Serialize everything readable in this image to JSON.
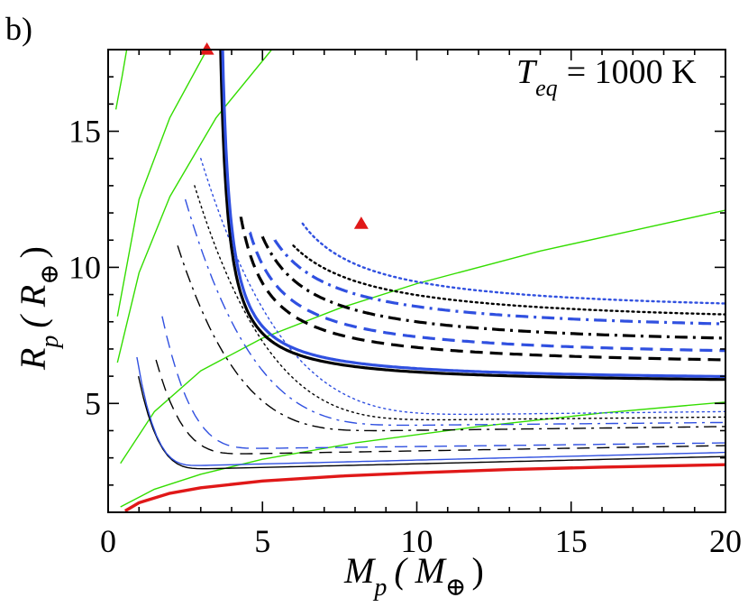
{
  "panel_label": "b)",
  "annotation": {
    "symbol": "T",
    "subscript": "eq",
    "equals": "= 1000 K"
  },
  "axis_labels": {
    "x": {
      "symbol": "M",
      "sub": "p",
      "open": "( M",
      "earth": "⊕",
      "close": ")"
    },
    "y": {
      "symbol": "R",
      "sub": "p",
      "open": "( R",
      "earth": "⊕",
      "close": ")"
    }
  },
  "chart_data": {
    "type": "line",
    "xlim": [
      0,
      20
    ],
    "ylim": [
      1,
      18
    ],
    "x_ticks": [
      0,
      5,
      10,
      15,
      20
    ],
    "x_tick_labels": [
      "0",
      "5",
      "10",
      "15",
      "20"
    ],
    "y_ticks": [
      5,
      10,
      15
    ],
    "y_tick_labels": [
      "5",
      "10",
      "15"
    ],
    "colors": {
      "black": "#000000",
      "blue": "#3050e0",
      "green": "#33dd00",
      "red": "#e01818"
    },
    "thick_families": [
      {
        "name": "black-solid-thick",
        "color": "black",
        "dash": "solid",
        "width": 3.2,
        "asym": 5.7,
        "k": 3.0,
        "x0": 3.4,
        "xstart": 3.55
      },
      {
        "name": "blue-solid-thick",
        "color": "blue",
        "dash": "solid",
        "width": 3.2,
        "asym": 5.8,
        "k": 3.15,
        "x0": 3.45,
        "xstart": 3.6
      },
      {
        "name": "black-dashed-thick",
        "color": "black",
        "dash": "dashed",
        "width": 3.2,
        "asym": 6.3,
        "k": 5.0,
        "x0": 3.4,
        "xstart": 4.3
      },
      {
        "name": "blue-dashed-thick",
        "color": "blue",
        "dash": "dashed",
        "width": 3.2,
        "asym": 6.6,
        "k": 5.6,
        "x0": 3.4,
        "xstart": 4.6
      },
      {
        "name": "black-dashdot-thick",
        "color": "black",
        "dash": "dashdot",
        "width": 3.2,
        "asym": 7.0,
        "k": 6.6,
        "x0": 3.4,
        "xstart": 5.0
      },
      {
        "name": "blue-dashdot-thick",
        "color": "blue",
        "dash": "dashdot",
        "width": 3.2,
        "asym": 7.5,
        "k": 7.0,
        "x0": 3.4,
        "xstart": 5.4
      },
      {
        "name": "black-dotted-thick",
        "color": "black",
        "dash": "dotted",
        "width": 2.4,
        "asym": 7.8,
        "k": 7.8,
        "x0": 3.4,
        "xstart": 6.0
      },
      {
        "name": "blue-dotted-thick",
        "color": "blue",
        "dash": "dotted",
        "width": 2.4,
        "asym": 8.2,
        "k": 7.5,
        "x0": 4.1,
        "xstart": 6.3
      }
    ],
    "thin_families": [
      {
        "name": "black-solid-thin",
        "color": "black",
        "dash": "solid",
        "width": 1.4,
        "xstart": 0.98,
        "ystart": 6.0,
        "ymin": 2.6,
        "xmin": 3.2,
        "yend": 3.05
      },
      {
        "name": "blue-solid-thin",
        "color": "blue",
        "dash": "solid",
        "width": 1.4,
        "xstart": 0.93,
        "ystart": 6.7,
        "ymin": 2.72,
        "xmin": 3.0,
        "yend": 3.2
      },
      {
        "name": "black-dashed-thin",
        "color": "black",
        "dash": "dashed",
        "width": 1.4,
        "xstart": 1.55,
        "ystart": 6.6,
        "ymin": 3.15,
        "xmin": 4.5,
        "yend": 3.45
      },
      {
        "name": "blue-dashed-thin",
        "color": "blue",
        "dash": "dashed",
        "width": 1.4,
        "xstart": 1.75,
        "ystart": 8.2,
        "ymin": 3.35,
        "xmin": 5.0,
        "yend": 3.55
      },
      {
        "name": "black-dashdot-thin",
        "color": "black",
        "dash": "dashdot",
        "width": 1.4,
        "xstart": 2.25,
        "ystart": 10.8,
        "ymin": 4.0,
        "xmin": 9.0,
        "yend": 4.15
      },
      {
        "name": "blue-dashdot-thin",
        "color": "blue",
        "dash": "dashdot",
        "width": 1.4,
        "xstart": 2.5,
        "ystart": 12.5,
        "ymin": 4.2,
        "xmin": 10.0,
        "yend": 4.3
      },
      {
        "name": "black-dotted-thin",
        "color": "black",
        "dash": "dotted",
        "width": 1.4,
        "xstart": 2.8,
        "ystart": 13.0,
        "ymin": 4.4,
        "xmin": 11.0,
        "yend": 4.5
      },
      {
        "name": "blue-dotted-thin",
        "color": "blue",
        "dash": "dotted",
        "width": 1.4,
        "xstart": 3.0,
        "ystart": 14.0,
        "ymin": 4.6,
        "xmin": 12.0,
        "yend": 4.7
      }
    ],
    "green_curves": [
      {
        "name": "green-1",
        "points": [
          [
            0.25,
            15.8
          ],
          [
            0.45,
            17.0
          ],
          [
            0.6,
            18.0
          ]
        ]
      },
      {
        "name": "green-2",
        "points": [
          [
            0.3,
            8.2
          ],
          [
            1.0,
            12.5
          ],
          [
            2.0,
            15.5
          ],
          [
            3.2,
            18.0
          ]
        ]
      },
      {
        "name": "green-3",
        "points": [
          [
            0.3,
            6.5
          ],
          [
            1.0,
            9.8
          ],
          [
            2.0,
            12.6
          ],
          [
            3.5,
            15.5
          ],
          [
            5.3,
            18.0
          ]
        ]
      },
      {
        "name": "green-4",
        "points": [
          [
            0.4,
            2.8
          ],
          [
            1.5,
            4.7
          ],
          [
            3.0,
            6.2
          ],
          [
            5.0,
            7.4
          ],
          [
            7.5,
            8.5
          ],
          [
            10.0,
            9.4
          ],
          [
            14.0,
            10.6
          ],
          [
            20.0,
            12.1
          ]
        ]
      },
      {
        "name": "green-5",
        "points": [
          [
            0.4,
            1.2
          ],
          [
            1.5,
            1.85
          ],
          [
            3.0,
            2.4
          ],
          [
            5.0,
            2.95
          ],
          [
            8.0,
            3.55
          ],
          [
            12.0,
            4.15
          ],
          [
            16.0,
            4.65
          ],
          [
            20.0,
            5.05
          ]
        ]
      }
    ],
    "red_curve": {
      "name": "red-thick",
      "points": [
        [
          0.55,
          1.05
        ],
        [
          1.0,
          1.35
        ],
        [
          2.0,
          1.7
        ],
        [
          3.0,
          1.9
        ],
        [
          5.0,
          2.15
        ],
        [
          7.5,
          2.33
        ],
        [
          10.0,
          2.45
        ],
        [
          13.0,
          2.57
        ],
        [
          16.0,
          2.66
        ],
        [
          20.0,
          2.75
        ]
      ]
    },
    "markers": [
      {
        "name": "red-triangle-top",
        "x": 3.2,
        "y": 18.0
      },
      {
        "name": "red-triangle-mid",
        "x": 8.2,
        "y": 11.6
      }
    ]
  }
}
